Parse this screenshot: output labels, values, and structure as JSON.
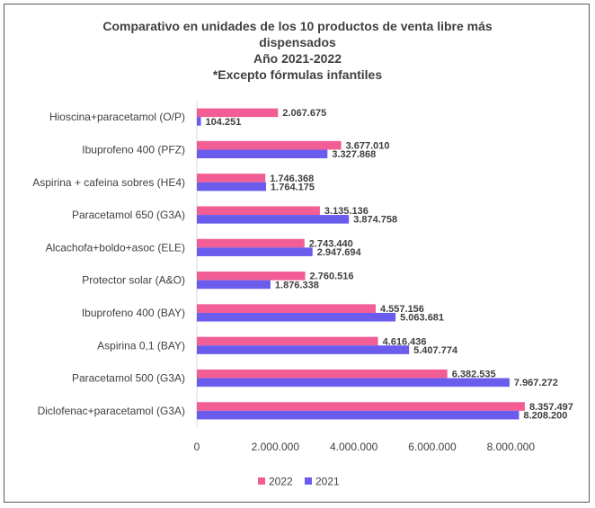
{
  "chart_data": {
    "type": "bar",
    "orientation": "horizontal",
    "title_lines": [
      "Comparativo en unidades de los 10 productos de venta libre más",
      "dispensados",
      "Año 2021-2022",
      "*Excepto fórmulas infantiles"
    ],
    "categories": [
      "Hioscina+paracetamol (O/P)",
      "Ibuprofeno  400 (PFZ)",
      "Aspirina + cafeina sobres  (HE4)",
      "Paracetamol 650 (G3A)",
      "Alcachofa+boldo+asoc  (ELE)",
      "Protector solar (A&O)",
      "Ibuprofeno  400 (BAY)",
      "Aspirina 0,1 (BAY)",
      "Paracetamol 500 (G3A)",
      "Diclofenac+paracetamol  (G3A)"
    ],
    "series": [
      {
        "name": "2022",
        "color": "#f25d95",
        "values": [
          2067675,
          3677010,
          1746368,
          3135136,
          2743440,
          2760516,
          4557156,
          4616436,
          6382535,
          8357497
        ],
        "labels": [
          "2.067.675",
          "3.677.010",
          "1.746.368",
          "3.135.136",
          "2.743.440",
          "2.760.516",
          "4.557.156",
          "4.616.436",
          "6.382.535",
          "8.357.497"
        ]
      },
      {
        "name": "2021",
        "color": "#6a5ced",
        "values": [
          104251,
          3327868,
          1764175,
          3874758,
          2947694,
          1876338,
          5063681,
          5407774,
          7967272,
          8208200
        ],
        "labels": [
          "104.251",
          "3.327.868",
          "1.764.175",
          "3.874.758",
          "2.947.694",
          "1.876.338",
          "5.063.681",
          "5.407.774",
          "7.967.272",
          "8.208.200"
        ]
      }
    ],
    "xlim": [
      0,
      9000000
    ],
    "x_ticks": [
      0,
      2000000,
      4000000,
      6000000,
      8000000
    ],
    "x_tick_labels": [
      "0",
      "2.000.000",
      "4.000.000",
      "6.000.000",
      "8.000.000"
    ],
    "grid": false,
    "legend_position": "bottom"
  }
}
